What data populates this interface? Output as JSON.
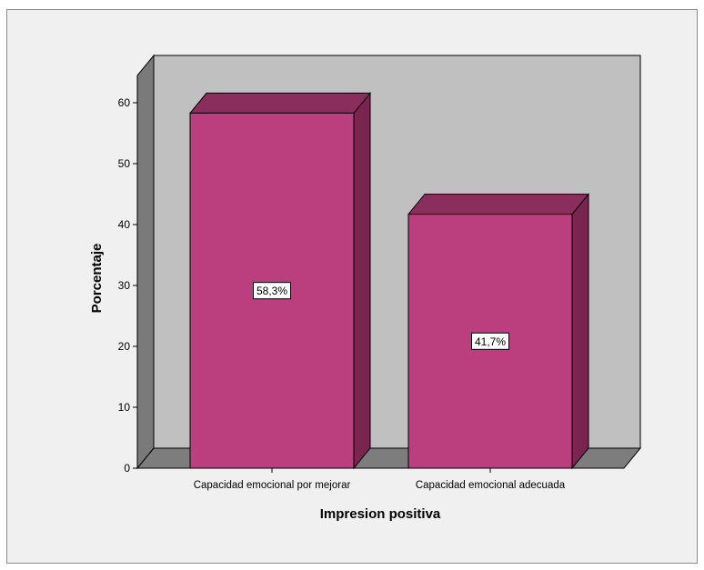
{
  "chart_data": {
    "type": "bar",
    "title": "",
    "xlabel": "Impresion positiva",
    "ylabel": "Porcentaje",
    "categories": [
      "Capacidad emocional por mejorar",
      "Capacidad emocional adecuada"
    ],
    "values": [
      58.3,
      41.7
    ],
    "data_labels": [
      "58,3%",
      "41,7%"
    ],
    "ylim": [
      0,
      60
    ],
    "yticks": [
      "0",
      "10",
      "20",
      "30",
      "40",
      "50",
      "60"
    ],
    "grid": false,
    "legend": "none",
    "style": "3d",
    "colors": {
      "bar_front": "#bb3e7e",
      "bar_side": "#7a2550",
      "bar_top": "#8a2e5e",
      "back_wall": "#c0c0c0",
      "side_wall": "#7a7a7a",
      "floor": "#7d7d7d",
      "background": "#f0f0f0"
    }
  }
}
